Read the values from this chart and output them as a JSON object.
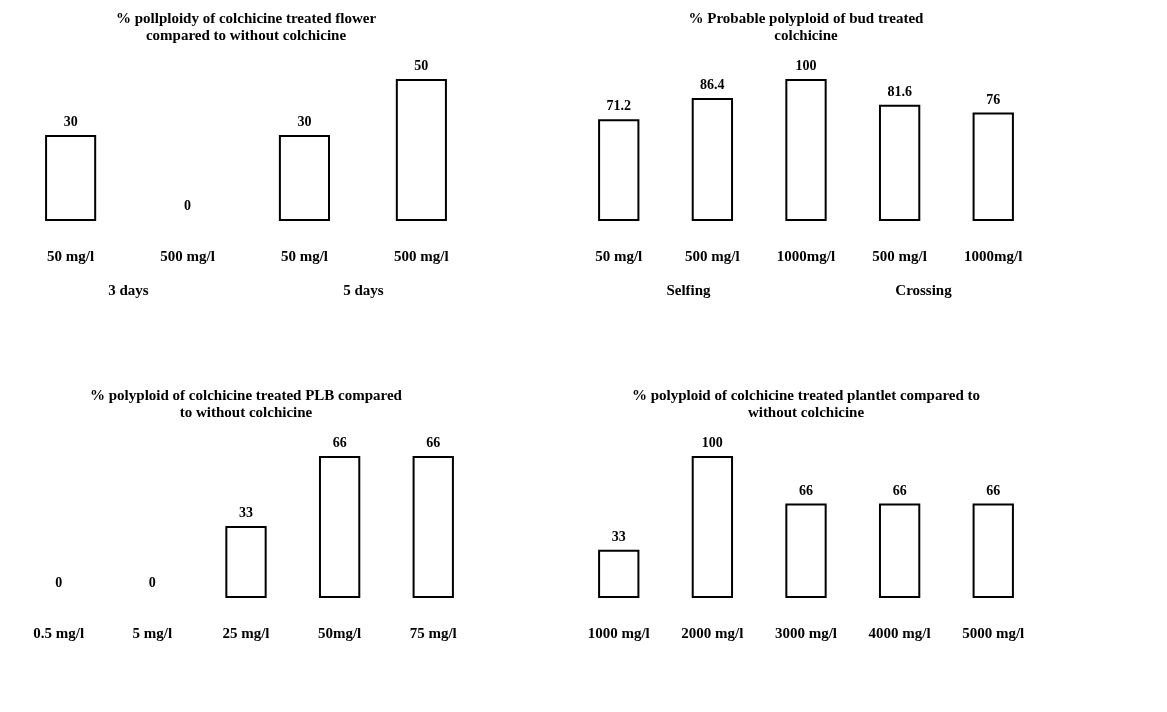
{
  "chart_data": [
    {
      "type": "bar",
      "title": "% pollploidy of colchicine treated flower\ncompared to without colchicine",
      "categories": [
        "50 mg/l",
        "500 mg/l",
        "50 mg/l",
        "500 mg/l"
      ],
      "values": [
        30,
        0,
        30,
        50
      ],
      "color": "#ffffff",
      "data_labels": true,
      "annotations": [
        "3 days",
        "5 days"
      ]
    },
    {
      "type": "bar",
      "title": "% Probable polyploid of bud treated\ncolchicine",
      "categories": [
        "50 mg/l",
        "500 mg/l",
        "1000mg/l",
        "500 mg/l",
        "1000mg/l"
      ],
      "values": [
        71.2,
        86.4,
        100,
        81.6,
        76
      ],
      "color": "#ffffff",
      "data_labels": true,
      "annotations": [
        "Selfing",
        "Crossing"
      ]
    },
    {
      "type": "bar",
      "title": "% polyploid of colchicine treated PLB compared\nto without colchicine",
      "categories": [
        "0.5 mg/l",
        "5 mg/l",
        "25 mg/l",
        "50mg/l",
        "75 mg/l"
      ],
      "values": [
        0,
        0,
        33,
        66,
        66
      ],
      "color": "#ffffff",
      "data_labels": true
    },
    {
      "type": "bar",
      "title": "% polyploid of colchicine treated plantlet compared to\nwithout colchicine",
      "categories": [
        "1000 mg/l",
        "2000 mg/l",
        "3000 mg/l",
        "4000 mg/l",
        "5000 mg/l"
      ],
      "values": [
        33,
        100,
        66,
        66,
        66
      ],
      "color": "#ffffff",
      "data_labels": true
    }
  ]
}
